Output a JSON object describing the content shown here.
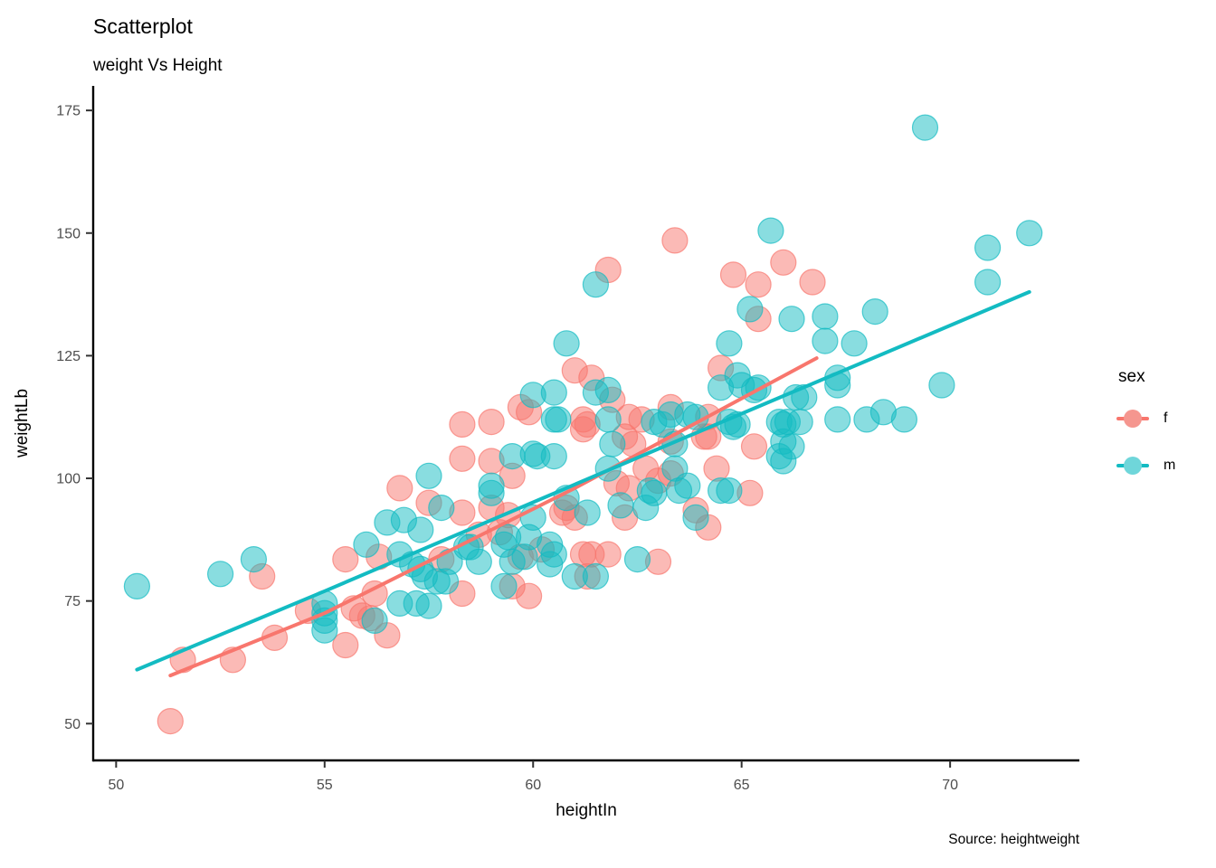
{
  "title": "Scatterplot",
  "subtitle": "weight Vs Height",
  "caption": "Source: heightweight",
  "legend": {
    "title": "sex",
    "position": "right",
    "entries": [
      {
        "label": "f",
        "color": "#F8766D",
        "fill": "#F5968F"
      },
      {
        "label": "m",
        "color": "#13BBC2",
        "fill": "#6FD6DA"
      }
    ]
  },
  "chart_data": {
    "type": "scatter",
    "title": "Scatterplot",
    "subtitle": "weight Vs Height",
    "caption": "Source: heightweight",
    "xlabel": "heightIn",
    "ylabel": "weightLb",
    "xlim": [
      49.45,
      73.1
    ],
    "ylim": [
      42.5,
      180
    ],
    "x_ticks": [
      50,
      55,
      60,
      65,
      70
    ],
    "y_ticks": [
      50,
      75,
      100,
      125,
      150,
      175
    ],
    "grid": false,
    "legend_position": "right",
    "point_style": {
      "radius": 14,
      "fill_opacity": 0.5,
      "stroke_opacity": 0.7
    },
    "axis_color": "#000000",
    "tick_label_color": "#4D4D4D",
    "series": [
      {
        "name": "f",
        "color": "#F8766D",
        "points": [
          [
            51.3,
            50.5
          ],
          [
            51.6,
            63
          ],
          [
            52.8,
            63
          ],
          [
            53.5,
            80
          ],
          [
            53.8,
            67.5
          ],
          [
            54.6,
            73
          ],
          [
            55.5,
            66
          ],
          [
            55.5,
            83.5
          ],
          [
            55.7,
            73.5
          ],
          [
            55.9,
            72
          ],
          [
            56.1,
            71.5
          ],
          [
            56.2,
            76.5
          ],
          [
            56.3,
            84
          ],
          [
            56.5,
            68
          ],
          [
            56.8,
            98
          ],
          [
            57.5,
            95
          ],
          [
            57.8,
            83.5
          ],
          [
            58.3,
            76.5
          ],
          [
            58.3,
            93
          ],
          [
            58.3,
            104
          ],
          [
            58.3,
            111
          ],
          [
            58.7,
            88.5
          ],
          [
            59,
            94
          ],
          [
            59,
            103.5
          ],
          [
            59,
            111.5
          ],
          [
            59.2,
            89
          ],
          [
            59.4,
            92.5
          ],
          [
            59.5,
            78
          ],
          [
            59.5,
            100.5
          ],
          [
            59.7,
            84
          ],
          [
            59.7,
            114.5
          ],
          [
            59.9,
            76
          ],
          [
            59.9,
            113.5
          ],
          [
            60.2,
            85.5
          ],
          [
            60.7,
            93
          ],
          [
            60.8,
            94
          ],
          [
            61,
            92
          ],
          [
            61,
            122
          ],
          [
            61.2,
            84.5
          ],
          [
            61.2,
            110
          ],
          [
            61.2,
            112
          ],
          [
            61.3,
            80
          ],
          [
            61.3,
            111
          ],
          [
            61.4,
            84.5
          ],
          [
            61.4,
            120.5
          ],
          [
            61.8,
            84.5
          ],
          [
            61.8,
            142.5
          ],
          [
            61.9,
            116
          ],
          [
            62,
            99
          ],
          [
            62.2,
            92
          ],
          [
            62.2,
            108.5
          ],
          [
            62.3,
            98
          ],
          [
            62.3,
            112.5
          ],
          [
            62.4,
            107
          ],
          [
            62.6,
            112
          ],
          [
            62.7,
            102
          ],
          [
            63,
            83
          ],
          [
            63,
            99.5
          ],
          [
            63.3,
            101
          ],
          [
            63.3,
            107.5
          ],
          [
            63.3,
            114.5
          ],
          [
            63.4,
            148.5
          ],
          [
            63.9,
            93.5
          ],
          [
            64.1,
            108.5
          ],
          [
            64.2,
            90
          ],
          [
            64.2,
            108.5
          ],
          [
            64.2,
            112.5
          ],
          [
            64.4,
            102
          ],
          [
            64.5,
            122.5
          ],
          [
            64.8,
            141.5
          ],
          [
            65.2,
            97
          ],
          [
            65.3,
            106.5
          ],
          [
            65.4,
            132.5
          ],
          [
            65.4,
            139.5
          ],
          [
            66,
            144
          ],
          [
            66.7,
            140
          ]
        ]
      },
      {
        "name": "m",
        "color": "#13BBC2",
        "points": [
          [
            50.5,
            78
          ],
          [
            52.5,
            80.5
          ],
          [
            53.3,
            83.5
          ],
          [
            55,
            69
          ],
          [
            55,
            71
          ],
          [
            55,
            72.5
          ],
          [
            55,
            74.5
          ],
          [
            56,
            86.5
          ],
          [
            56.2,
            71
          ],
          [
            56.5,
            91
          ],
          [
            56.8,
            74.5
          ],
          [
            56.8,
            84.5
          ],
          [
            56.9,
            91.5
          ],
          [
            57.1,
            82.5
          ],
          [
            57.2,
            74.5
          ],
          [
            57.3,
            81.5
          ],
          [
            57.3,
            89.5
          ],
          [
            57.4,
            80
          ],
          [
            57.5,
            74
          ],
          [
            57.5,
            100.5
          ],
          [
            57.7,
            79
          ],
          [
            57.8,
            94
          ],
          [
            57.9,
            79
          ],
          [
            58,
            83
          ],
          [
            58.4,
            86
          ],
          [
            58.5,
            86
          ],
          [
            58.7,
            83
          ],
          [
            59,
            97
          ],
          [
            59,
            98.5
          ],
          [
            59.3,
            78
          ],
          [
            59.3,
            86.5
          ],
          [
            59.4,
            88
          ],
          [
            59.5,
            83
          ],
          [
            59.5,
            104.5
          ],
          [
            59.8,
            84
          ],
          [
            59.9,
            88
          ],
          [
            60,
            92
          ],
          [
            60,
            105
          ],
          [
            60,
            117
          ],
          [
            60.1,
            104.5
          ],
          [
            60.4,
            82.5
          ],
          [
            60.4,
            86.5
          ],
          [
            60.5,
            84.5
          ],
          [
            60.5,
            104.5
          ],
          [
            60.5,
            112
          ],
          [
            60.5,
            117.5
          ],
          [
            60.6,
            112
          ],
          [
            60.8,
            96
          ],
          [
            60.8,
            127.5
          ],
          [
            61,
            80
          ],
          [
            61.3,
            93
          ],
          [
            61.5,
            80
          ],
          [
            61.5,
            117.5
          ],
          [
            61.5,
            139.5
          ],
          [
            61.8,
            102
          ],
          [
            61.8,
            112
          ],
          [
            61.8,
            118
          ],
          [
            61.9,
            107
          ],
          [
            62.1,
            94.5
          ],
          [
            62.5,
            83.5
          ],
          [
            62.7,
            94
          ],
          [
            62.8,
            97.5
          ],
          [
            62.9,
            97
          ],
          [
            62.9,
            111.5
          ],
          [
            63.1,
            111
          ],
          [
            63.3,
            113
          ],
          [
            63.4,
            102
          ],
          [
            63.4,
            107
          ],
          [
            63.5,
            97.5
          ],
          [
            63.7,
            98.5
          ],
          [
            63.7,
            113
          ],
          [
            63.9,
            92
          ],
          [
            63.9,
            112.5
          ],
          [
            64.5,
            97.5
          ],
          [
            64.5,
            118.5
          ],
          [
            64.7,
            97.5
          ],
          [
            64.7,
            111.5
          ],
          [
            64.7,
            127.5
          ],
          [
            64.8,
            110.5
          ],
          [
            64.9,
            111
          ],
          [
            64.9,
            121
          ],
          [
            65,
            119
          ],
          [
            65.2,
            134.5
          ],
          [
            65.3,
            118
          ],
          [
            65.4,
            118.5
          ],
          [
            65.7,
            150.5
          ],
          [
            65.9,
            104.5
          ],
          [
            65.9,
            111.5
          ],
          [
            66,
            103.5
          ],
          [
            66,
            107.5
          ],
          [
            66,
            111
          ],
          [
            66.1,
            111.5
          ],
          [
            66.2,
            106.5
          ],
          [
            66.2,
            132.5
          ],
          [
            66.3,
            116.5
          ],
          [
            66.4,
            111.5
          ],
          [
            66.5,
            116.5
          ],
          [
            67,
            128
          ],
          [
            67,
            133
          ],
          [
            67.3,
            112
          ],
          [
            67.3,
            119
          ],
          [
            67.3,
            120.5
          ],
          [
            67.7,
            127.5
          ],
          [
            68,
            112
          ],
          [
            68.2,
            134
          ],
          [
            68.4,
            113.5
          ],
          [
            68.9,
            112
          ],
          [
            69.4,
            171.5
          ],
          [
            69.8,
            119
          ],
          [
            70.9,
            140
          ],
          [
            70.9,
            147
          ],
          [
            71.9,
            150
          ]
        ]
      }
    ],
    "trend_lines": [
      {
        "name": "f",
        "color": "#F8766D",
        "points": [
          [
            51.3,
            59.8
          ],
          [
            55,
            72.5
          ],
          [
            61,
            98
          ],
          [
            66.8,
            124.5
          ]
        ]
      },
      {
        "name": "m",
        "color": "#13BBC2",
        "points": [
          [
            50.5,
            61
          ],
          [
            55,
            77
          ],
          [
            63,
            106
          ],
          [
            71.9,
            138
          ]
        ]
      }
    ]
  }
}
